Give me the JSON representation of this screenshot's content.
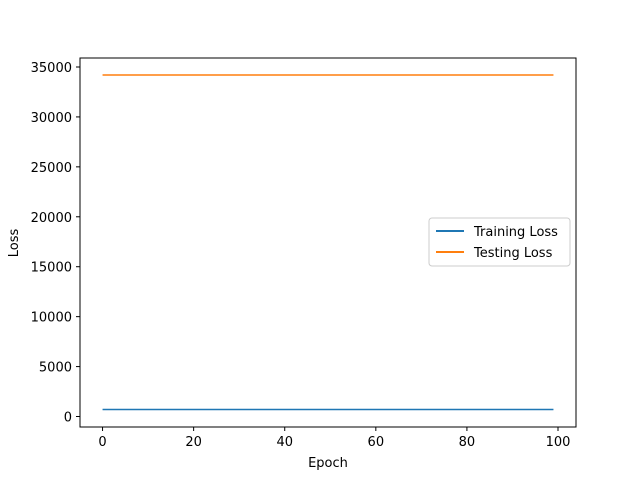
{
  "chart_data": {
    "type": "line",
    "title": "",
    "xlabel": "Epoch",
    "ylabel": "Loss",
    "xlim": [
      -4.95,
      103.95
    ],
    "ylim": [
      -1050,
      35900
    ],
    "xticks": [
      0,
      20,
      40,
      60,
      80,
      100
    ],
    "yticks": [
      0,
      5000,
      10000,
      15000,
      20000,
      25000,
      30000,
      35000
    ],
    "grid": false,
    "legend_position": "center-right",
    "series": [
      {
        "name": "Training Loss",
        "color": "#1f77b4",
        "x": [
          0,
          99
        ],
        "y": [
          700,
          700
        ]
      },
      {
        "name": "Testing Loss",
        "color": "#ff7f0e",
        "x": [
          0,
          99
        ],
        "y": [
          34200,
          34200
        ]
      }
    ]
  }
}
